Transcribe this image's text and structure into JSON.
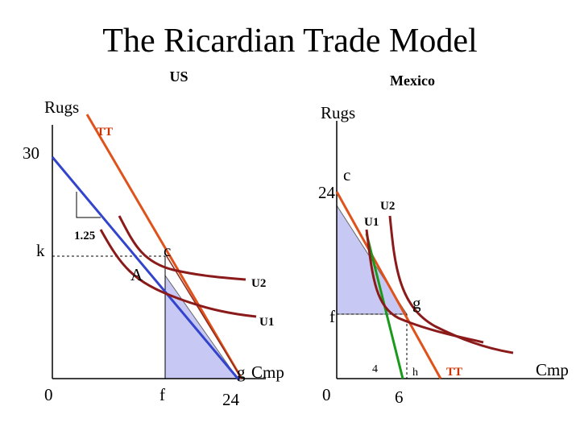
{
  "title": "The Ricardian Trade Model",
  "us": {
    "heading": "US",
    "y_axis": "Rugs",
    "tt": "TT",
    "y_intercept": "30",
    "slope": "1.25",
    "k": "k",
    "c": "c",
    "a": "A",
    "u2": "U2",
    "u1": "U1",
    "g": "g",
    "x_axis": "Cmp",
    "origin": "0",
    "f": "f",
    "x_intercept": "24"
  },
  "mexico": {
    "heading": "Mexico",
    "y_axis": "Rugs",
    "y_intercept": "24",
    "c": "c",
    "u2": "U2",
    "u1": "U1",
    "f": "f",
    "g": "g",
    "four": "4",
    "h": "h",
    "tt": "TT",
    "x_axis": "Cmp",
    "origin": "0",
    "x_intercept": "6"
  }
}
